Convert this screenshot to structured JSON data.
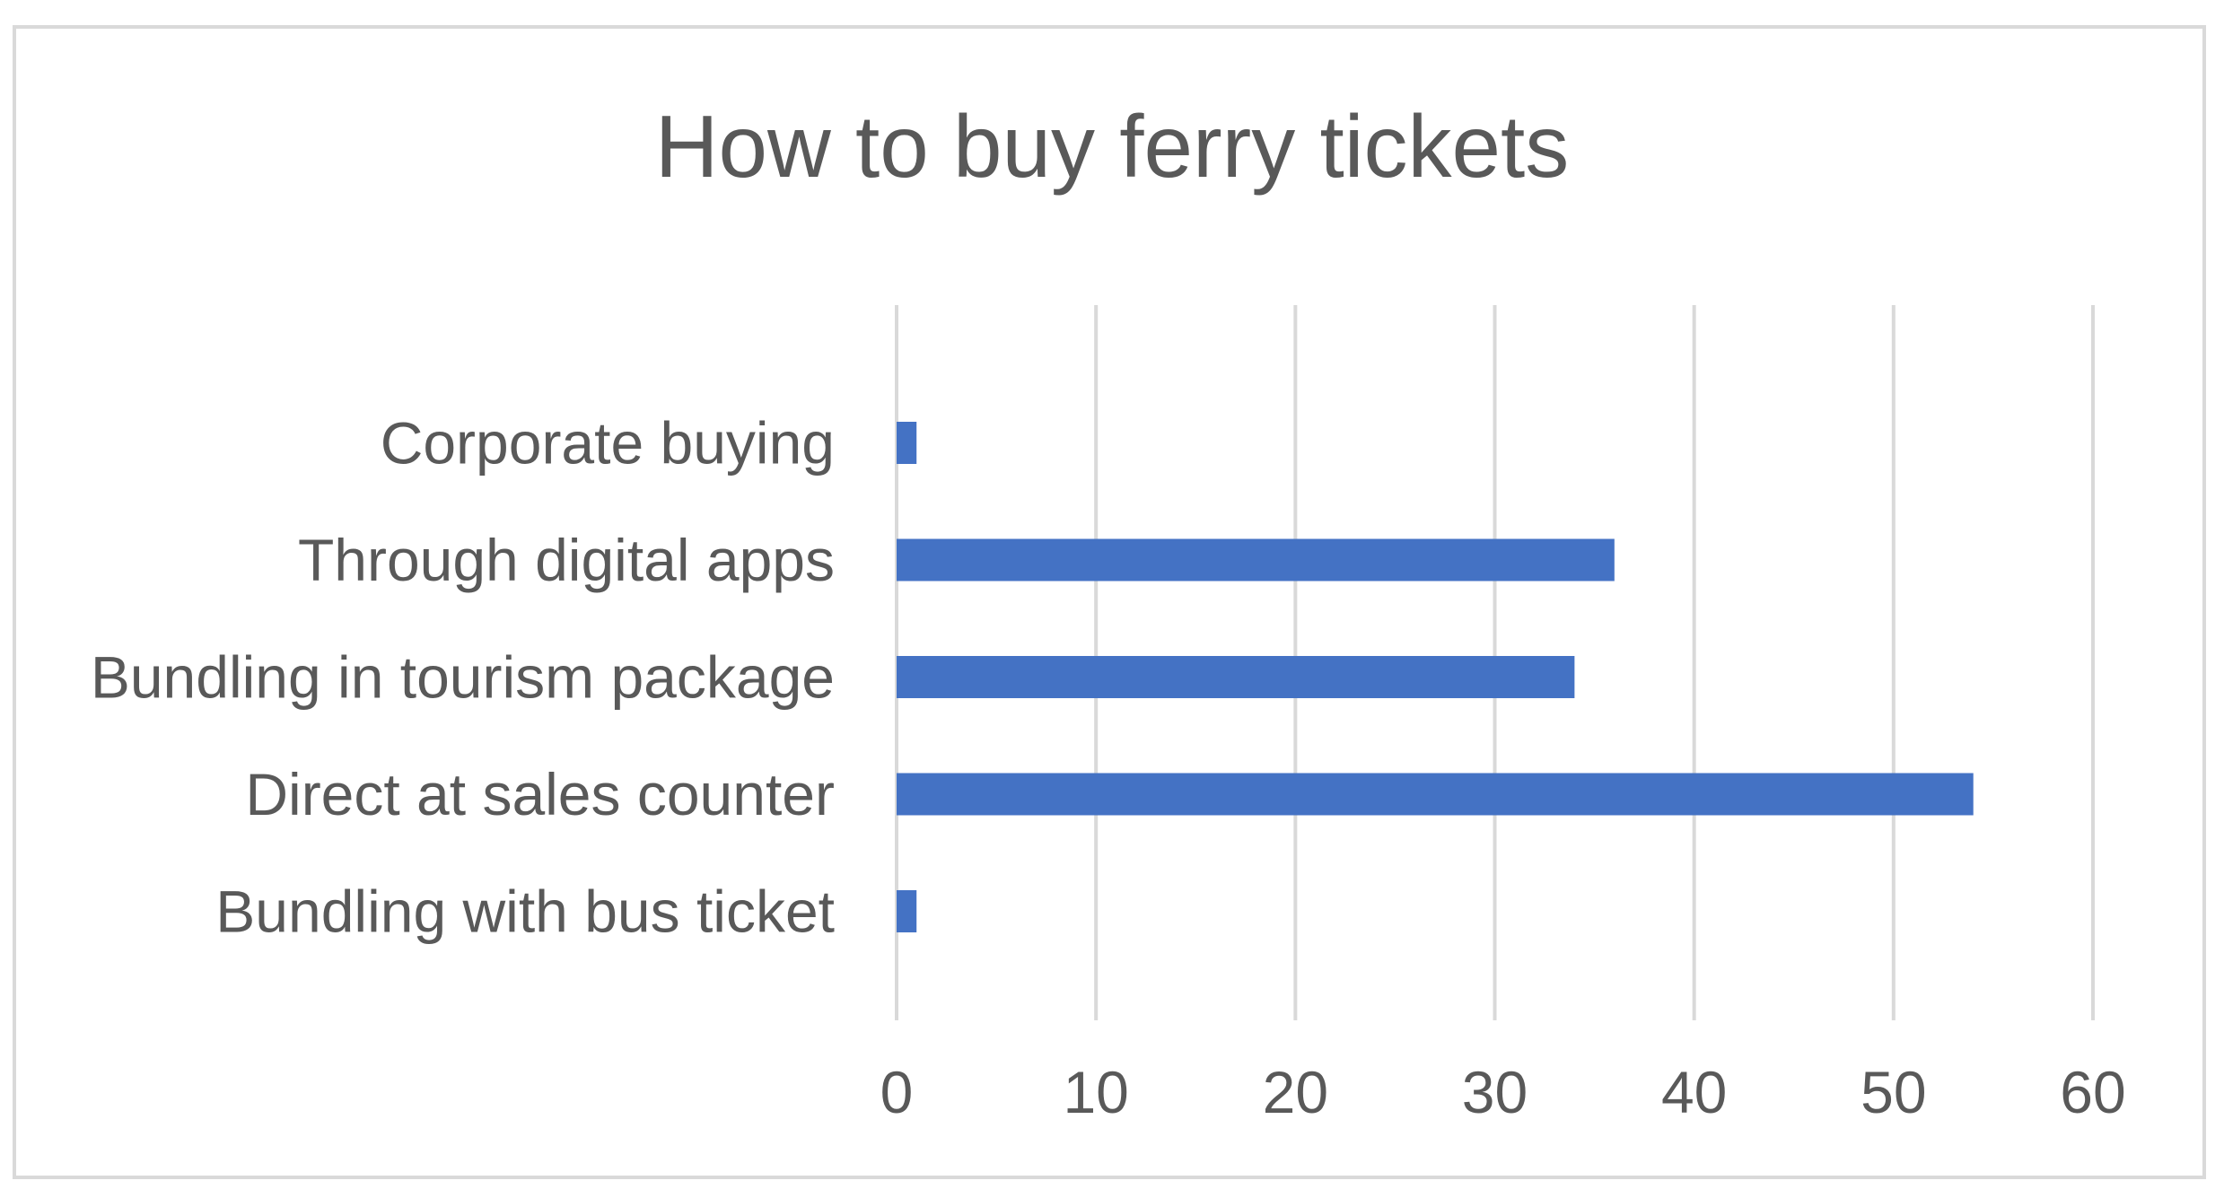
{
  "chart_data": {
    "type": "bar",
    "orientation": "horizontal",
    "title": "How to buy ferry tickets",
    "xlabel": "",
    "ylabel": "",
    "categories": [
      "Bundling with bus ticket",
      "Direct at sales counter",
      "Bundling in tourism package",
      "Through digital apps",
      "Corporate buying"
    ],
    "values": [
      1,
      54,
      34,
      36,
      1
    ],
    "xlim": [
      0,
      60
    ],
    "xticks": [
      "0",
      "10",
      "20",
      "30",
      "40",
      "50",
      "60"
    ],
    "grid": true,
    "legend": "none",
    "colors": {
      "bar": "#4472c4",
      "grid": "#d9d9d9",
      "text": "#595959",
      "border": "#d9d9d9"
    }
  }
}
